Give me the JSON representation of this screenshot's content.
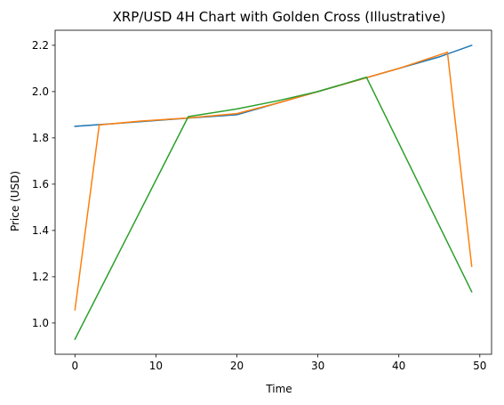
{
  "chart_data": {
    "type": "line",
    "title": "XRP/USD 4H Chart with Golden Cross (Illustrative)",
    "xlabel": "Time",
    "ylabel": "Price (USD)",
    "xlim": [
      -2.45,
      51.45
    ],
    "ylim": [
      0.865,
      2.265
    ],
    "xticks": [
      0,
      10,
      20,
      30,
      40,
      50
    ],
    "yticks": [
      1.0,
      1.2,
      1.4,
      1.6,
      1.8,
      2.0,
      2.2
    ],
    "ytick_labels": [
      "1.0",
      "1.2",
      "1.4",
      "1.6",
      "1.8",
      "2.0",
      "2.2"
    ],
    "grid": false,
    "legend": false,
    "series": [
      {
        "color": "#1f77b4",
        "points": [
          [
            0,
            1.85
          ],
          [
            5,
            1.862
          ],
          [
            10,
            1.875
          ],
          [
            15,
            1.888
          ],
          [
            20,
            1.9
          ],
          [
            25,
            1.95
          ],
          [
            30,
            2.0
          ],
          [
            35,
            2.05
          ],
          [
            40,
            2.1
          ],
          [
            45,
            2.15
          ],
          [
            49,
            2.2
          ]
        ]
      },
      {
        "color": "#ff7f0e",
        "points": [
          [
            0,
            1.057
          ],
          [
            3,
            1.856
          ],
          [
            8,
            1.872
          ],
          [
            14,
            1.886
          ],
          [
            20,
            1.905
          ],
          [
            25,
            1.95
          ],
          [
            30,
            2.0
          ],
          [
            35,
            2.05
          ],
          [
            40,
            2.1
          ],
          [
            46,
            2.17
          ],
          [
            49,
            1.245
          ]
        ]
      },
      {
        "color": "#2ca02c",
        "points": [
          [
            0,
            0.93
          ],
          [
            14,
            1.892
          ],
          [
            20,
            1.925
          ],
          [
            25,
            1.96
          ],
          [
            30,
            2.0
          ],
          [
            36,
            2.062
          ],
          [
            49,
            1.135
          ]
        ]
      }
    ]
  }
}
